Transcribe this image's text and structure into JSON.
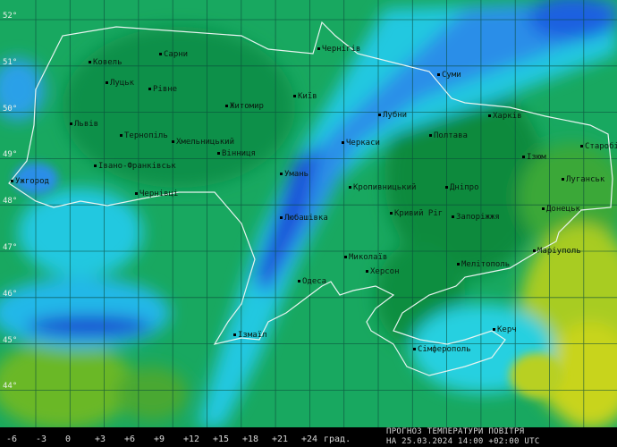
{
  "latitudes": [
    "52°",
    "51°",
    "50°",
    "49°",
    "48°",
    "47°",
    "46°",
    "45°",
    "44°"
  ],
  "cities": [
    {
      "name": "Ковель"
    },
    {
      "name": "Сарни"
    },
    {
      "name": "Луцьк"
    },
    {
      "name": "Рівне"
    },
    {
      "name": "Житомир"
    },
    {
      "name": "Київ"
    },
    {
      "name": "Чернігів"
    },
    {
      "name": "Суми"
    },
    {
      "name": "Львів"
    },
    {
      "name": "Тернопіль"
    },
    {
      "name": "Хмельницький"
    },
    {
      "name": "Вінниця"
    },
    {
      "name": "Черкаси"
    },
    {
      "name": "Лубни"
    },
    {
      "name": "Полтава"
    },
    {
      "name": "Харків"
    },
    {
      "name": "Ізюм"
    },
    {
      "name": "Старобільськ"
    },
    {
      "name": "Луганськ"
    },
    {
      "name": "Умань"
    },
    {
      "name": "Івано-Франківськ"
    },
    {
      "name": "Ужгород"
    },
    {
      "name": "Чернівці"
    },
    {
      "name": "Кропивницький"
    },
    {
      "name": "Дніпро"
    },
    {
      "name": "Кривий Ріг"
    },
    {
      "name": "Запоріжжя"
    },
    {
      "name": "Донецьк"
    },
    {
      "name": "Любашівка"
    },
    {
      "name": "Миколаїв"
    },
    {
      "name": "Херсон"
    },
    {
      "name": "Одеса"
    },
    {
      "name": "Мелітополь"
    },
    {
      "name": "Маріуполь"
    },
    {
      "name": "Ізмаїл"
    },
    {
      "name": "Сімферополь"
    },
    {
      "name": "Керч"
    }
  ],
  "legend": {
    "ticks": [
      "-6",
      "-3",
      "0",
      "+3",
      "+6",
      "+9",
      "+12",
      "+15",
      "+18",
      "+21",
      "+24"
    ],
    "unit": "град."
  },
  "caption": {
    "line1": "ПРОГНОЗ ТЕМПЕРАТУРИ ПОВІТРЯ",
    "line2": "НА 25.03.2024 14:00 +02:00 UTC"
  },
  "colors": {
    "cold": "#1a4fd8",
    "cool": "#19c8e0",
    "mild": "#10a050",
    "warm": "#7cc020",
    "warmest": "#c8d820"
  }
}
